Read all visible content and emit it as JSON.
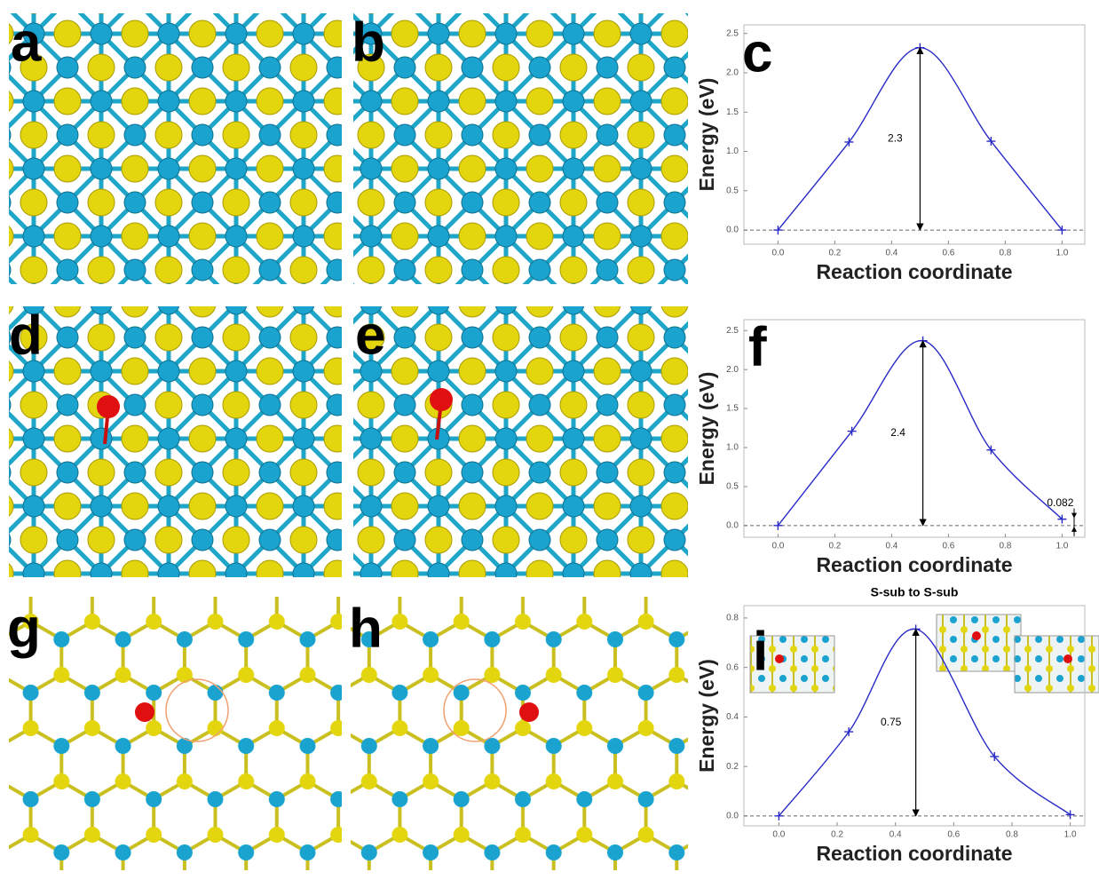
{
  "panels": [
    "a",
    "b",
    "c",
    "d",
    "e",
    "f",
    "g",
    "h",
    "i"
  ],
  "chart_data": [
    {
      "type": "line",
      "xlabel": "Reaction coordinate",
      "ylabel": "Energy (eV)",
      "color": "#2a2ac8",
      "x": [
        0,
        0.25,
        0.5,
        0.75,
        1.0
      ],
      "values": [
        0,
        1.12,
        2.32,
        1.13,
        0
      ],
      "xlim": [
        -0.12,
        1.08
      ],
      "ylim": [
        -0.18,
        2.61
      ],
      "xticks": [
        {
          "value": 0,
          "label": "0.0"
        },
        0.2,
        0.4,
        0.6,
        0.8,
        {
          "value": 1,
          "label": "1.0"
        }
      ],
      "yticks": [
        {
          "value": 0,
          "label": "0.0"
        },
        0.5,
        {
          "value": 1,
          "label": "1.0"
        },
        1.5,
        {
          "value": 2,
          "label": "2.0"
        },
        2.5
      ],
      "annotations": [
        "2.3"
      ]
    },
    {
      "type": "line",
      "xlabel": "Reaction coordinate",
      "ylabel": "Energy (eV)",
      "color": "#2a2ac8",
      "x": [
        0,
        0.26,
        0.51,
        0.75,
        1.0
      ],
      "values": [
        0,
        1.21,
        2.37,
        0.97,
        0.082
      ],
      "xlim": [
        -0.12,
        1.08
      ],
      "ylim": [
        -0.15,
        2.64
      ],
      "xticks": [
        {
          "value": 0,
          "label": "0.0"
        },
        0.2,
        0.4,
        0.6,
        0.8,
        {
          "value": 1,
          "label": "1.0"
        }
      ],
      "yticks": [
        {
          "value": 0,
          "label": "0.0"
        },
        0.5,
        {
          "value": 1,
          "label": "1.0"
        },
        1.5,
        {
          "value": 2,
          "label": "2.0"
        },
        2.5
      ],
      "annotations": [
        "2.4",
        "0.082"
      ]
    },
    {
      "type": "line",
      "title": "S-sub to S-sub",
      "xlabel": "Reaction coordinate",
      "ylabel": "Energy (eV)",
      "color": "#2a2ac8",
      "x": [
        0,
        0.24,
        0.47,
        0.74,
        1.0
      ],
      "values": [
        0,
        0.34,
        0.755,
        0.24,
        0.005
      ],
      "xlim": [
        -0.12,
        1.05
      ],
      "ylim": [
        -0.04,
        0.85
      ],
      "xticks": [
        {
          "value": 0,
          "label": "0.0"
        },
        0.2,
        0.4,
        0.6,
        0.8,
        {
          "value": 1,
          "label": "1.0"
        }
      ],
      "yticks": [
        {
          "value": 0,
          "label": "0.0"
        },
        0.2,
        0.4,
        0.6,
        0.8
      ],
      "annotations": [
        "0.75"
      ]
    }
  ]
}
